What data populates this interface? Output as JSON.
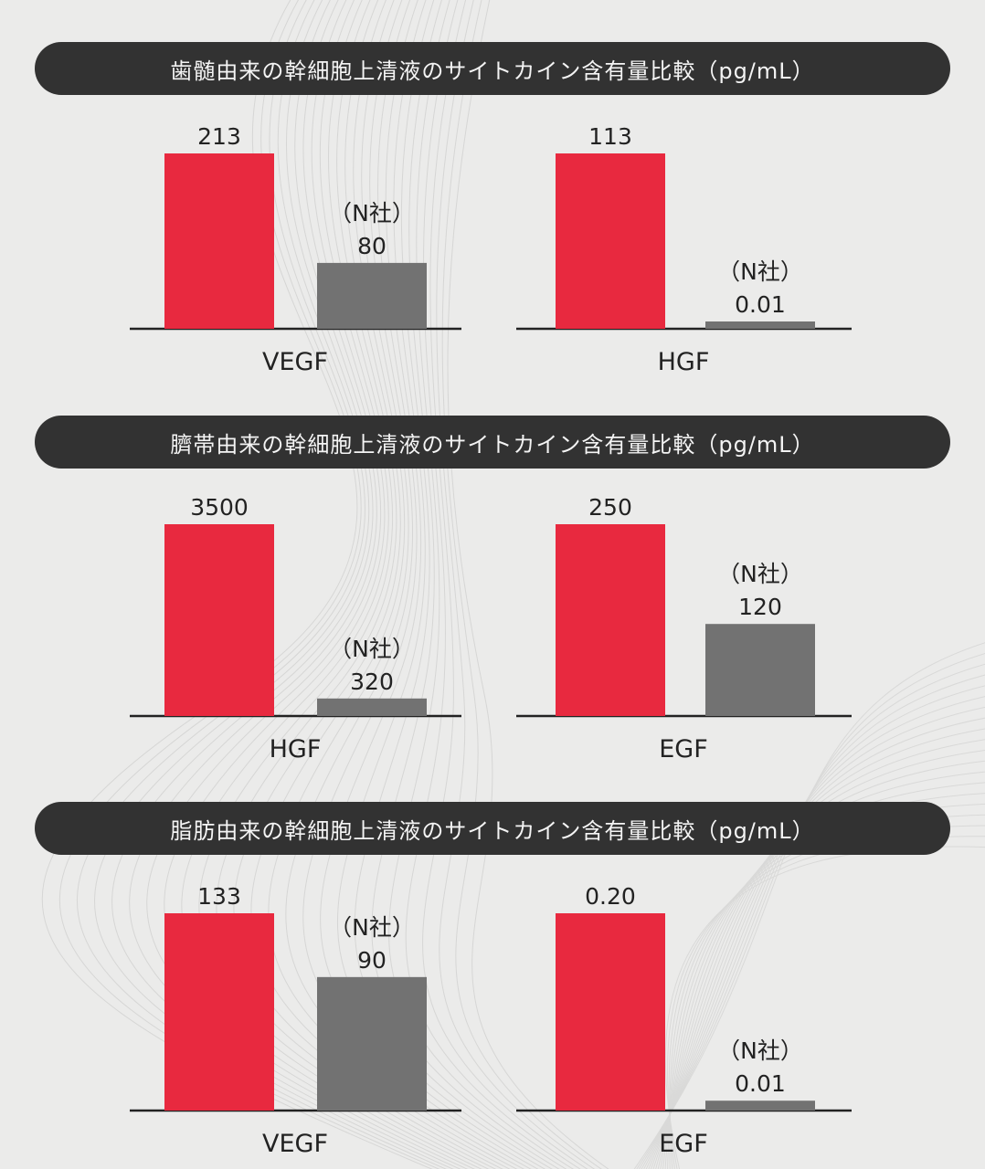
{
  "colors": {
    "accent_bar": "#e8293f",
    "competitor_bar": "#727272",
    "banner_bg": "#323232",
    "banner_text": "#f4f4f4",
    "background": "#ebebea",
    "axis": "#222222"
  },
  "competitor_tag": "（N社）",
  "chart_data": [
    {
      "title": "歯髄由来の幹細胞上清液のサイトカイン含有量比較（pg/mL）",
      "panels": [
        {
          "type": "bar",
          "category": "VEGF",
          "values": [
            213,
            80
          ],
          "company_label_on": [
            false,
            true
          ]
        },
        {
          "type": "bar",
          "category": "HGF",
          "values": [
            113,
            0.01
          ],
          "company_label_on": [
            false,
            true
          ]
        }
      ]
    },
    {
      "title": "臍帯由来の幹細胞上清液のサイトカイン含有量比較（pg/mL）",
      "panels": [
        {
          "type": "bar",
          "category": "HGF",
          "values": [
            3500,
            320
          ],
          "company_label_on": [
            false,
            true
          ]
        },
        {
          "type": "bar",
          "category": "EGF",
          "values": [
            250,
            120
          ],
          "company_label_on": [
            false,
            true
          ]
        }
      ]
    },
    {
      "title": "脂肪由来の幹細胞上清液のサイトカイン含有量比較（pg/mL）",
      "panels": [
        {
          "type": "bar",
          "category": "VEGF",
          "values": [
            133,
            90
          ],
          "company_label_on": [
            false,
            true
          ]
        },
        {
          "type": "bar",
          "category": "EGF",
          "values": [
            0.2,
            0.01
          ],
          "company_label_on": [
            false,
            true
          ]
        }
      ]
    }
  ],
  "value_text": [
    [
      "213",
      "80",
      "113",
      "0.01"
    ],
    [
      "3500",
      "320",
      "250",
      "120"
    ],
    [
      "133",
      "90",
      "0.20",
      "0.01"
    ]
  ]
}
